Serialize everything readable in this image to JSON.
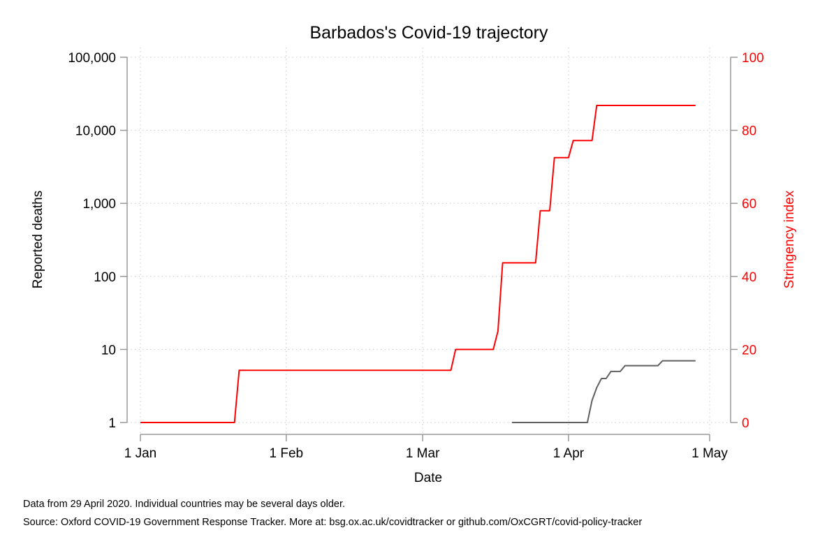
{
  "chart_data": {
    "type": "line",
    "title": "Barbados's Covid-19 trajectory",
    "xlabel": "Date",
    "ylabel_left": "Reported deaths",
    "ylabel_right": "Stringency index",
    "x_ticks": [
      "1 Jan",
      "1 Feb",
      "1 Mar",
      "1 Apr",
      "1 May"
    ],
    "x_tick_dates": [
      "2020-01-01",
      "2020-02-01",
      "2020-03-01",
      "2020-04-01",
      "2020-05-01"
    ],
    "xlim": [
      "2020-01-01",
      "2020-05-01"
    ],
    "y_left_scale": "log",
    "y_left_ticks": [
      "1",
      "10",
      "100",
      "1,000",
      "10,000",
      "100,000"
    ],
    "y_left_tick_values": [
      1,
      10,
      100,
      1000,
      10000,
      100000
    ],
    "y_left_lim": [
      1,
      100000
    ],
    "y_right_ticks": [
      "0",
      "20",
      "40",
      "60",
      "80",
      "100"
    ],
    "y_right_tick_values": [
      0,
      20,
      40,
      60,
      80,
      100
    ],
    "y_right_lim": [
      0,
      100
    ],
    "grid": true,
    "series": [
      {
        "name": "Stringency index",
        "axis": "right",
        "color": "#ff0000",
        "points": [
          [
            "2020-01-01",
            0
          ],
          [
            "2020-01-21",
            0
          ],
          [
            "2020-01-22",
            14.3
          ],
          [
            "2020-03-07",
            14.3
          ],
          [
            "2020-03-08",
            20
          ],
          [
            "2020-03-16",
            20
          ],
          [
            "2020-03-17",
            25
          ],
          [
            "2020-03-18",
            43.7
          ],
          [
            "2020-03-25",
            43.7
          ],
          [
            "2020-03-26",
            58
          ],
          [
            "2020-03-28",
            58
          ],
          [
            "2020-03-29",
            72.5
          ],
          [
            "2020-04-01",
            72.5
          ],
          [
            "2020-04-02",
            77.2
          ],
          [
            "2020-04-06",
            77.2
          ],
          [
            "2020-04-07",
            86.8
          ],
          [
            "2020-04-28",
            86.8
          ]
        ]
      },
      {
        "name": "Reported deaths",
        "axis": "left",
        "color": "#606060",
        "points": [
          [
            "2020-03-20",
            1
          ],
          [
            "2020-04-05",
            1
          ],
          [
            "2020-04-06",
            2
          ],
          [
            "2020-04-07",
            3
          ],
          [
            "2020-04-08",
            4
          ],
          [
            "2020-04-09",
            4
          ],
          [
            "2020-04-10",
            5
          ],
          [
            "2020-04-12",
            5
          ],
          [
            "2020-04-13",
            6
          ],
          [
            "2020-04-20",
            6
          ],
          [
            "2020-04-21",
            7
          ],
          [
            "2020-04-28",
            7
          ]
        ]
      }
    ]
  },
  "footer": {
    "note1": "Data from 29 April 2020. Individual countries may be several days older.",
    "note2": "Source: Oxford COVID-19 Government Response Tracker. More at: bsg.ox.ac.uk/covidtracker or github.com/OxCGRT/covid-policy-tracker"
  }
}
